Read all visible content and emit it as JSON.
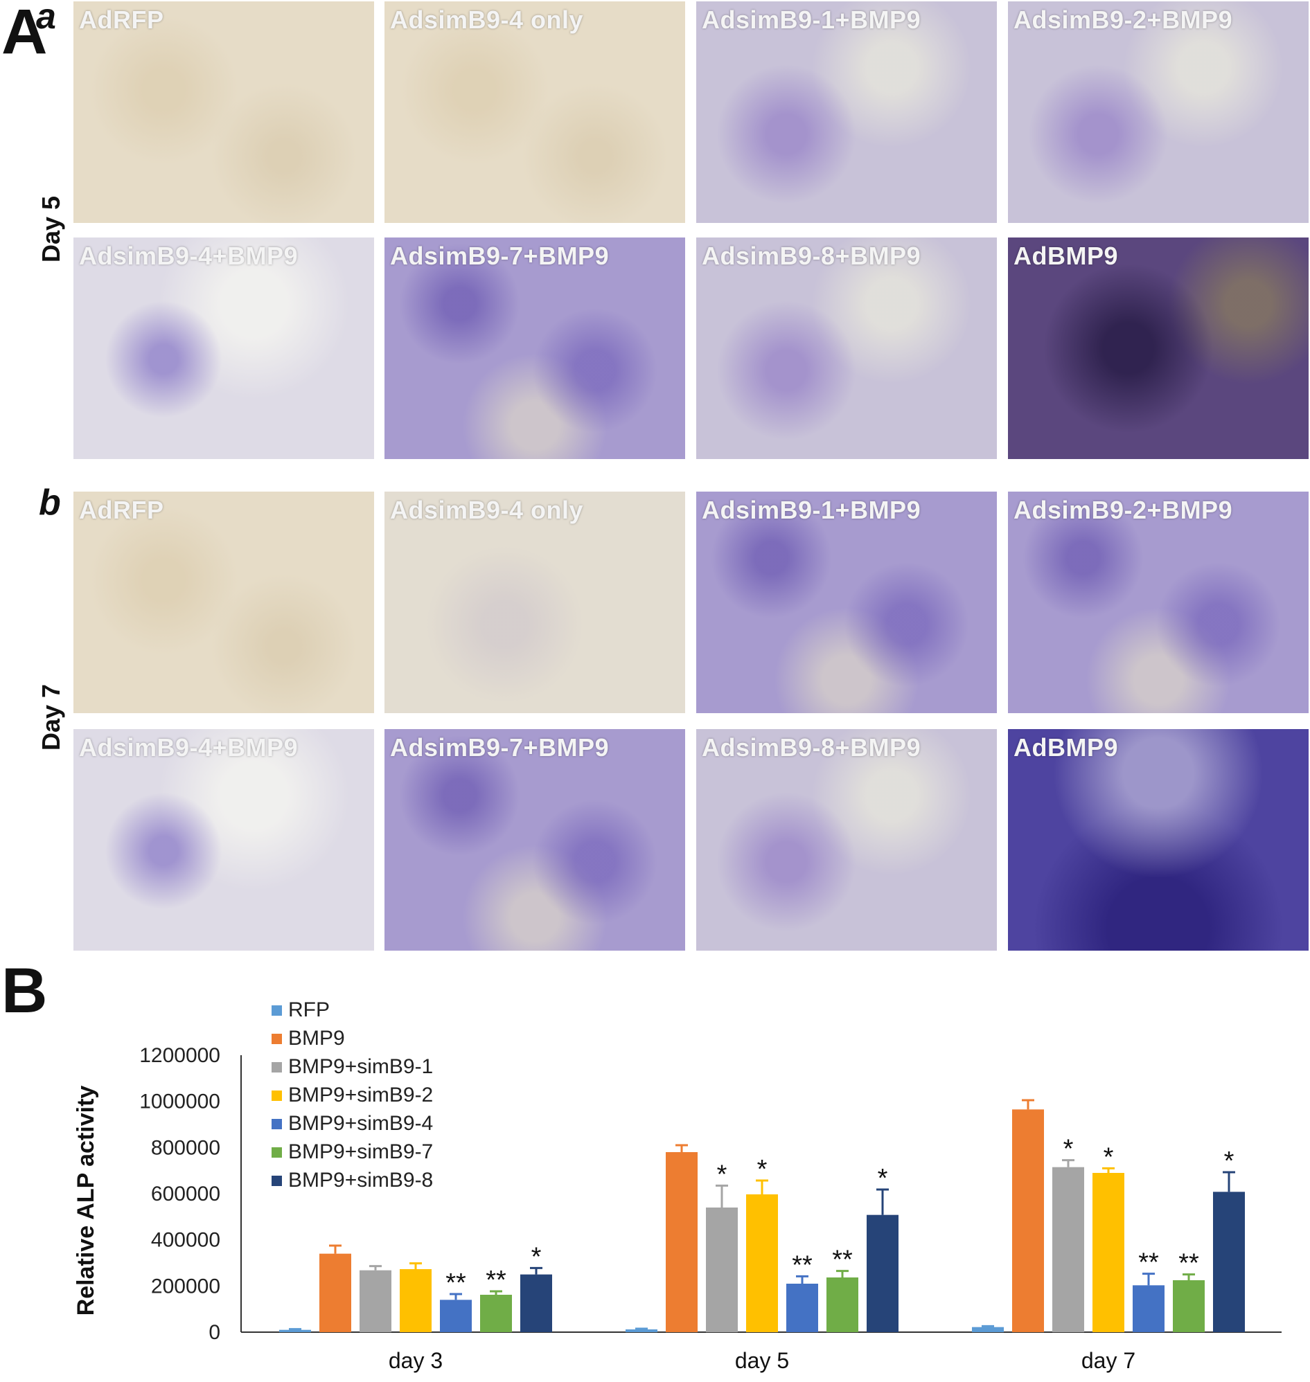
{
  "panel_A": {
    "letter": "A",
    "sub_a": {
      "letter": "a",
      "day_label": "Day 5",
      "tiles": [
        {
          "label": "AdRFP",
          "style": "bg-beige"
        },
        {
          "label": "AdsimB9-4 only",
          "style": "bg-beige"
        },
        {
          "label": "AdsimB9-1+BMP9",
          "style": "bg-violet-light"
        },
        {
          "label": "AdsimB9-2+BMP9",
          "style": "bg-violet-light"
        },
        {
          "label": "AdsimB9-4+BMP9",
          "style": "bg-white-violet"
        },
        {
          "label": "AdsimB9-7+BMP9",
          "style": "bg-violet"
        },
        {
          "label": "AdsimB9-8+BMP9",
          "style": "bg-violet-light"
        },
        {
          "label": "AdBMP9",
          "style": "bg-dark-violet"
        }
      ]
    },
    "sub_b": {
      "letter": "b",
      "day_label": "Day 7",
      "tiles": [
        {
          "label": "AdRFP",
          "style": "bg-beige"
        },
        {
          "label": "AdsimB9-4 only",
          "style": "bg-light"
        },
        {
          "label": "AdsimB9-1+BMP9",
          "style": "bg-violet"
        },
        {
          "label": "AdsimB9-2+BMP9",
          "style": "bg-violet"
        },
        {
          "label": "AdsimB9-4+BMP9",
          "style": "bg-white-violet"
        },
        {
          "label": "AdsimB9-7+BMP9",
          "style": "bg-violet"
        },
        {
          "label": "AdsimB9-8+BMP9",
          "style": "bg-violet-light"
        },
        {
          "label": "AdBMP9",
          "style": "bg-deep-blue"
        }
      ]
    }
  },
  "panel_B": {
    "letter": "B"
  },
  "chart_data": {
    "type": "bar",
    "title": "",
    "xlabel": "",
    "ylabel": "Relative ALP activity",
    "ylim": [
      0,
      1200000
    ],
    "yticks": [
      0,
      200000,
      400000,
      600000,
      800000,
      1000000,
      1200000
    ],
    "ytick_labels": [
      "0",
      "200000",
      "400000",
      "600000",
      "800000",
      "1000000",
      "1200000"
    ],
    "categories": [
      "day 3",
      "day 5",
      "day 7"
    ],
    "legend_position": "top-left",
    "grid": false,
    "series": [
      {
        "name": "RFP",
        "color": "#5b9bd5",
        "values": [
          10000,
          12000,
          22000
        ],
        "errors": [
          3000,
          3000,
          4000
        ],
        "sig": [
          "",
          "",
          ""
        ]
      },
      {
        "name": "BMP9",
        "color": "#ed7d31",
        "values": [
          340000,
          780000,
          965000
        ],
        "errors": [
          35000,
          30000,
          40000
        ],
        "sig": [
          "",
          "",
          ""
        ]
      },
      {
        "name": "BMP9+simB9-1",
        "color": "#a5a5a5",
        "values": [
          268000,
          540000,
          715000
        ],
        "errors": [
          18000,
          95000,
          30000
        ],
        "sig": [
          "",
          "*",
          "*"
        ]
      },
      {
        "name": "BMP9+simB9-2",
        "color": "#ffc000",
        "values": [
          273000,
          597000,
          690000
        ],
        "errors": [
          25000,
          60000,
          20000
        ],
        "sig": [
          "",
          "*",
          "*"
        ]
      },
      {
        "name": "BMP9+simB9-4",
        "color": "#4472c4",
        "values": [
          140000,
          210000,
          203000
        ],
        "errors": [
          25000,
          32000,
          50000
        ],
        "sig": [
          "**",
          "**",
          "**"
        ]
      },
      {
        "name": "BMP9+simB9-7",
        "color": "#70ad47",
        "values": [
          162000,
          237000,
          225000
        ],
        "errors": [
          15000,
          28000,
          25000
        ],
        "sig": [
          "**",
          "**",
          "**"
        ]
      },
      {
        "name": "BMP9+simB9-8",
        "color": "#264478",
        "values": [
          250000,
          508000,
          608000
        ],
        "errors": [
          28000,
          110000,
          85000
        ],
        "sig": [
          "*",
          "*",
          "*"
        ]
      }
    ]
  }
}
